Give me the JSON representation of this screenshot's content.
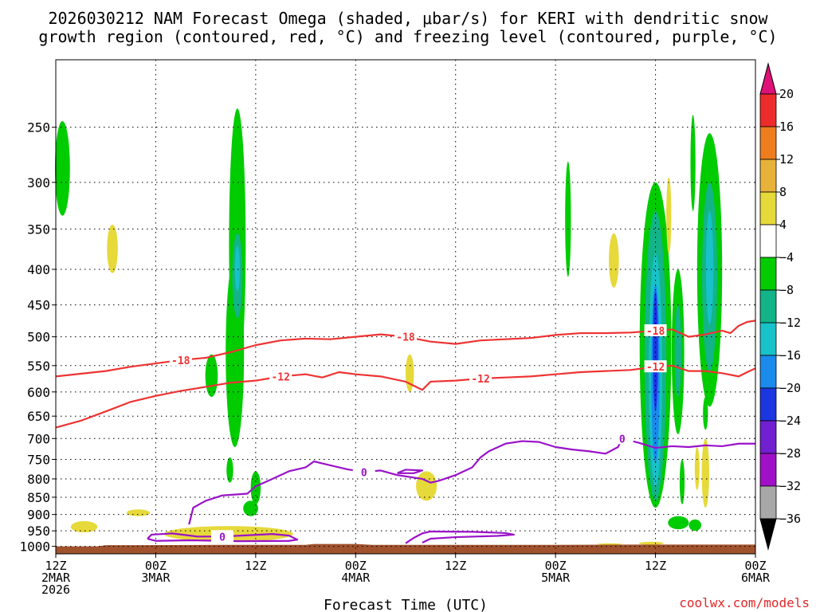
{
  "title_line1": "2026030212 NAM Forecast Omega (shaded, μbar/s) for KERI with dendritic snow",
  "title_line2": "growth region (contoured, red, °C) and freezing level (contoured, purple, °C)",
  "credit": "coolwx.com/models",
  "colors": {
    "terrain": "#a0522d",
    "dgz_contour": "#ee3333",
    "freezing_contour": "#9a12c8",
    "omega_green": "#00cc00",
    "omega_yellow": "#e6d93a"
  },
  "chart_data": {
    "type": "heatmap",
    "title": "2026030212 NAM Forecast Omega (shaded, μbar/s) for KERI with dendritic snow growth region (contoured, red, °C) and freezing level (contoured, purple, °C)",
    "xlabel": "Forecast Time (UTC)",
    "ylabel": "",
    "x_ticks": [
      {
        "l1": "12Z",
        "l2": "2MAR",
        "l3": "2026"
      },
      {
        "l1": "00Z",
        "l2": "3MAR",
        "l3": ""
      },
      {
        "l1": "12Z",
        "l2": "",
        "l3": ""
      },
      {
        "l1": "00Z",
        "l2": "4MAR",
        "l3": ""
      },
      {
        "l1": "12Z",
        "l2": "",
        "l3": ""
      },
      {
        "l1": "00Z",
        "l2": "5MAR",
        "l3": ""
      },
      {
        "l1": "12Z",
        "l2": "",
        "l3": ""
      },
      {
        "l1": "00Z",
        "l2": "6MAR",
        "l3": ""
      }
    ],
    "xlim_hours": [
      0,
      84
    ],
    "y_ticks": [
      250,
      300,
      350,
      400,
      450,
      500,
      550,
      600,
      650,
      700,
      750,
      800,
      850,
      900,
      950,
      1000
    ],
    "ylim_hPa": [
      200,
      1025
    ],
    "grid": true,
    "colorbar": {
      "labels": [
        "20",
        "16",
        "12",
        "8",
        "4",
        "−4",
        "−8",
        "−12",
        "−16",
        "−20",
        "−24",
        "−28",
        "−32",
        "−36"
      ],
      "colors": [
        "#dd1177",
        "#ee2b2b",
        "#ee7d1e",
        "#e6b23a",
        "#e6d93a",
        "#ffffff",
        "#00cc00",
        "#12b488",
        "#17c2c8",
        "#1a8aec",
        "#1c36e0",
        "#7020d0",
        "#a010c8",
        "#a8a8a8",
        "#000000"
      ]
    },
    "contours": {
      "dgz_minus18": {
        "label": "-18",
        "points": [
          [
            0,
            570
          ],
          [
            3,
            565
          ],
          [
            6,
            560
          ],
          [
            9,
            552
          ],
          [
            12,
            546
          ],
          [
            15,
            540
          ],
          [
            18,
            536
          ],
          [
            21,
            526
          ],
          [
            24,
            514
          ],
          [
            27,
            506
          ],
          [
            30,
            503
          ],
          [
            33,
            504
          ],
          [
            36,
            500
          ],
          [
            39,
            496
          ],
          [
            42,
            500
          ],
          [
            45,
            508
          ],
          [
            48,
            512
          ],
          [
            51,
            506
          ],
          [
            54,
            504
          ],
          [
            57,
            502
          ],
          [
            60,
            497
          ],
          [
            63,
            494
          ],
          [
            66,
            494
          ],
          [
            69,
            493
          ],
          [
            72,
            490
          ],
          [
            74,
            488
          ],
          [
            75,
            494
          ],
          [
            76,
            500
          ],
          [
            78,
            496
          ],
          [
            80,
            490
          ],
          [
            81,
            494
          ],
          [
            82,
            482
          ],
          [
            83,
            476
          ],
          [
            84,
            474
          ]
        ]
      },
      "dgz_minus12": {
        "label": "-12",
        "points": [
          [
            0,
            675
          ],
          [
            3,
            660
          ],
          [
            6,
            640
          ],
          [
            9,
            620
          ],
          [
            12,
            608
          ],
          [
            15,
            598
          ],
          [
            18,
            590
          ],
          [
            21,
            582
          ],
          [
            24,
            578
          ],
          [
            27,
            570
          ],
          [
            30,
            566
          ],
          [
            32,
            572
          ],
          [
            34,
            562
          ],
          [
            36,
            566
          ],
          [
            39,
            570
          ],
          [
            42,
            580
          ],
          [
            44,
            596
          ],
          [
            45,
            580
          ],
          [
            48,
            578
          ],
          [
            51,
            574
          ],
          [
            54,
            572
          ],
          [
            57,
            570
          ],
          [
            60,
            566
          ],
          [
            63,
            562
          ],
          [
            66,
            560
          ],
          [
            69,
            558
          ],
          [
            72,
            552
          ],
          [
            74,
            550
          ],
          [
            76,
            560
          ],
          [
            78,
            560
          ],
          [
            80,
            564
          ],
          [
            82,
            570
          ],
          [
            83,
            562
          ],
          [
            84,
            555
          ]
        ]
      },
      "freezing_0_main": {
        "label": "0",
        "points": [
          [
            16,
            930
          ],
          [
            16.5,
            880
          ],
          [
            18,
            860
          ],
          [
            20,
            845
          ],
          [
            23,
            840
          ],
          [
            24,
            820
          ],
          [
            26,
            800
          ],
          [
            28,
            780
          ],
          [
            30,
            770
          ],
          [
            31,
            755
          ],
          [
            32,
            760
          ],
          [
            35,
            775
          ],
          [
            37,
            782
          ],
          [
            39,
            778
          ],
          [
            41,
            790
          ],
          [
            44,
            800
          ],
          [
            45,
            810
          ],
          [
            46,
            805
          ],
          [
            48,
            790
          ],
          [
            50,
            770
          ],
          [
            51,
            745
          ],
          [
            52,
            730
          ],
          [
            54,
            712
          ],
          [
            56,
            706
          ],
          [
            58,
            708
          ],
          [
            60,
            720
          ],
          [
            62,
            726
          ],
          [
            64,
            730
          ],
          [
            66,
            736
          ],
          [
            67.5,
            720
          ],
          [
            68,
            700
          ],
          [
            70,
            710
          ],
          [
            72,
            722
          ],
          [
            74,
            718
          ],
          [
            76,
            720
          ],
          [
            78,
            716
          ],
          [
            80,
            718
          ],
          [
            82,
            712
          ],
          [
            84,
            712
          ]
        ]
      },
      "freezing_0_low": {
        "label": "0",
        "points": [
          [
            11,
            975
          ],
          [
            11.5,
            962
          ],
          [
            14,
            958
          ],
          [
            17,
            968
          ],
          [
            20,
            968
          ],
          [
            23,
            964
          ],
          [
            26,
            960
          ],
          [
            28,
            965
          ],
          [
            29,
            978
          ],
          [
            28,
            982
          ],
          [
            22,
            983
          ],
          [
            16,
            980
          ],
          [
            12,
            982
          ],
          [
            11,
            975
          ]
        ]
      },
      "freezing_0_sfc": {
        "label": "0",
        "points": [
          [
            42,
            990
          ],
          [
            43,
            972
          ],
          [
            44,
            958
          ],
          [
            45,
            952
          ],
          [
            50,
            953
          ],
          [
            54,
            957
          ],
          [
            55,
            962
          ],
          [
            53,
            966
          ],
          [
            48,
            970
          ],
          [
            45,
            975
          ],
          [
            44,
            988
          ]
        ]
      },
      "freezing_0_small": {
        "label": "0",
        "points": [
          [
            41,
            785
          ],
          [
            42,
            776
          ],
          [
            44,
            778
          ],
          [
            43,
            785
          ],
          [
            41,
            785
          ]
        ]
      }
    },
    "omega_cells": [
      {
        "t": 0.8,
        "p1": 245,
        "p2": 335,
        "w": 1.8,
        "c": "#00cc00"
      },
      {
        "t": 6.8,
        "p1": 345,
        "p2": 405,
        "w": 1.3,
        "c": "#e6d93a"
      },
      {
        "t": 18.7,
        "p1": 530,
        "p2": 610,
        "w": 1.5,
        "c": "#00cc00"
      },
      {
        "t": 21.5,
        "p1": 385,
        "p2": 720,
        "w": 2.2,
        "c": "#00cc00"
      },
      {
        "t": 21.8,
        "p1": 235,
        "p2": 575,
        "w": 2.0,
        "c": "#00cc00"
      },
      {
        "t": 21.8,
        "p1": 355,
        "p2": 470,
        "w": 1.2,
        "c": "#12b488"
      },
      {
        "t": 21.8,
        "p1": 370,
        "p2": 430,
        "w": 0.6,
        "c": "#17c2c8"
      },
      {
        "t": 20.9,
        "p1": 745,
        "p2": 810,
        "w": 0.8,
        "c": "#00cc00"
      },
      {
        "t": 24.0,
        "p1": 780,
        "p2": 870,
        "w": 1.2,
        "c": "#00cc00"
      },
      {
        "t": 42.5,
        "p1": 530,
        "p2": 600,
        "w": 1.0,
        "c": "#e6d93a"
      },
      {
        "t": 44.5,
        "p1": 780,
        "p2": 860,
        "w": 2.5,
        "c": "#e6d93a"
      },
      {
        "t": 61.5,
        "p1": 280,
        "p2": 410,
        "w": 0.7,
        "c": "#00cc00"
      },
      {
        "t": 67.0,
        "p1": 355,
        "p2": 425,
        "w": 1.2,
        "c": "#e6d93a"
      },
      {
        "t": 72.0,
        "p1": 300,
        "p2": 880,
        "w": 3.8,
        "c": "#00cc00"
      },
      {
        "t": 72.0,
        "p1": 330,
        "p2": 860,
        "w": 2.6,
        "c": "#12b488"
      },
      {
        "t": 72.0,
        "p1": 380,
        "p2": 820,
        "w": 1.6,
        "c": "#17c2c8"
      },
      {
        "t": 72.0,
        "p1": 420,
        "p2": 760,
        "w": 1.0,
        "c": "#1a8aec"
      },
      {
        "t": 72.0,
        "p1": 430,
        "p2": 640,
        "w": 0.6,
        "c": "#1c36e0"
      },
      {
        "t": 73.6,
        "p1": 295,
        "p2": 380,
        "w": 0.6,
        "c": "#e6d93a"
      },
      {
        "t": 74.7,
        "p1": 400,
        "p2": 690,
        "w": 1.5,
        "c": "#00cc00"
      },
      {
        "t": 74.7,
        "p1": 450,
        "p2": 610,
        "w": 0.8,
        "c": "#12b488"
      },
      {
        "t": 75.2,
        "p1": 750,
        "p2": 870,
        "w": 0.6,
        "c": "#00cc00"
      },
      {
        "t": 76.5,
        "p1": 240,
        "p2": 330,
        "w": 0.6,
        "c": "#00cc00"
      },
      {
        "t": 78.5,
        "p1": 255,
        "p2": 630,
        "w": 3.0,
        "c": "#00cc00"
      },
      {
        "t": 78.5,
        "p1": 300,
        "p2": 560,
        "w": 1.8,
        "c": "#12b488"
      },
      {
        "t": 78.5,
        "p1": 330,
        "p2": 480,
        "w": 0.9,
        "c": "#17c2c8"
      },
      {
        "t": 78.0,
        "p1": 610,
        "p2": 680,
        "w": 0.6,
        "c": "#00cc00"
      },
      {
        "t": 77.0,
        "p1": 720,
        "p2": 830,
        "w": 0.5,
        "c": "#e6d93a"
      },
      {
        "t": 78.0,
        "p1": 700,
        "p2": 880,
        "w": 0.9,
        "c": "#e6d93a"
      }
    ],
    "omega_patches": [
      {
        "t1": 1.8,
        "t2": 5.0,
        "p1": 920,
        "p2": 955,
        "c": "#e6d93a"
      },
      {
        "t1": 8.5,
        "t2": 11.3,
        "p1": 885,
        "p2": 905,
        "c": "#e6d93a"
      },
      {
        "t1": 13.0,
        "t2": 28.5,
        "p1": 935,
        "p2": 985,
        "c": "#e6d93a"
      },
      {
        "t1": 22.5,
        "t2": 24.3,
        "p1": 860,
        "p2": 905,
        "c": "#00cc00"
      },
      {
        "t1": 65.0,
        "t2": 68.0,
        "p1": 990,
        "p2": 995,
        "c": "#e6d93a"
      },
      {
        "t1": 70.0,
        "t2": 73.0,
        "p1": 985,
        "p2": 995,
        "c": "#e6d93a"
      },
      {
        "t1": 73.5,
        "t2": 76.0,
        "p1": 905,
        "p2": 945,
        "c": "#00cc00"
      },
      {
        "t1": 76.0,
        "t2": 77.5,
        "p1": 915,
        "p2": 950,
        "c": "#00cc00"
      }
    ],
    "terrain_top_hPa": [
      [
        0,
        1000
      ],
      [
        5,
        1000
      ],
      [
        6,
        996
      ],
      [
        10,
        996
      ],
      [
        20,
        995
      ],
      [
        30,
        995
      ],
      [
        31,
        992
      ],
      [
        36,
        992
      ],
      [
        38,
        995
      ],
      [
        50,
        995
      ],
      [
        60,
        995
      ],
      [
        70,
        994
      ],
      [
        80,
        994
      ],
      [
        84,
        994
      ]
    ],
    "terrain_bottom_hPa": 1025
  }
}
